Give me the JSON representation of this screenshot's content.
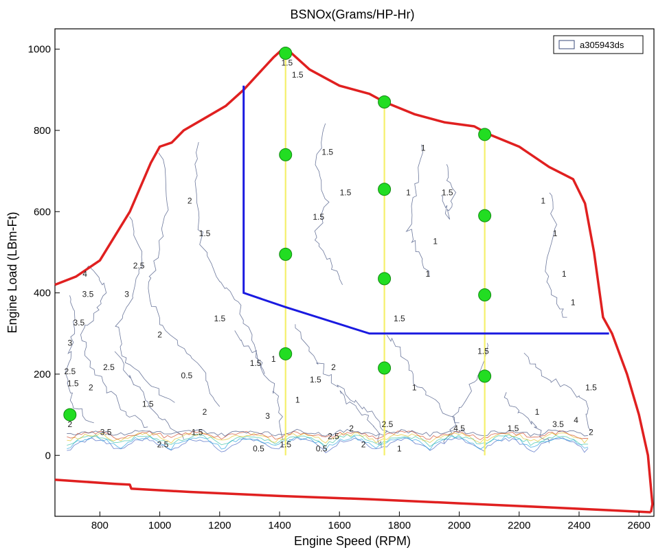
{
  "chart_data": {
    "type": "line",
    "title": "BSNOx(Grams/HP-Hr)",
    "xlabel": "Engine Speed (RPM)",
    "ylabel": "Engine Load (LBm-Ft)",
    "xlim": [
      650,
      2650
    ],
    "ylim": [
      -150,
      1050
    ],
    "xticks": [
      800,
      1000,
      1200,
      1400,
      1600,
      1800,
      2000,
      2200,
      2400,
      2600
    ],
    "yticks": [
      0,
      200,
      400,
      600,
      800,
      1000
    ],
    "legend": {
      "label": "a305943ds",
      "placement": "top-right"
    },
    "colors": {
      "envelope": "#e02020",
      "boundary": "#1a1ae0",
      "speed_lines": "#f5f06a",
      "test_points": "#22dd22",
      "contours": "#3a4a7a"
    },
    "envelope_upper": [
      [
        650,
        420
      ],
      [
        720,
        440
      ],
      [
        800,
        480
      ],
      [
        900,
        600
      ],
      [
        970,
        720
      ],
      [
        1000,
        760
      ],
      [
        1040,
        770
      ],
      [
        1080,
        800
      ],
      [
        1150,
        830
      ],
      [
        1220,
        860
      ],
      [
        1280,
        900
      ],
      [
        1330,
        940
      ],
      [
        1380,
        980
      ],
      [
        1410,
        1000
      ],
      [
        1440,
        990
      ],
      [
        1500,
        950
      ],
      [
        1600,
        910
      ],
      [
        1700,
        890
      ],
      [
        1750,
        870
      ],
      [
        1850,
        840
      ],
      [
        1950,
        820
      ],
      [
        2050,
        810
      ],
      [
        2100,
        790
      ],
      [
        2200,
        760
      ],
      [
        2300,
        710
      ],
      [
        2380,
        680
      ],
      [
        2420,
        620
      ],
      [
        2450,
        500
      ],
      [
        2480,
        340
      ],
      [
        2510,
        300
      ],
      [
        2560,
        200
      ],
      [
        2600,
        100
      ],
      [
        2630,
        0
      ],
      [
        2645,
        -120
      ],
      [
        2640,
        -140
      ]
    ],
    "envelope_lower": [
      [
        650,
        -60
      ],
      [
        750,
        -65
      ],
      [
        850,
        -70
      ],
      [
        900,
        -72
      ],
      [
        905,
        -82
      ],
      [
        1100,
        -90
      ],
      [
        1400,
        -100
      ],
      [
        1700,
        -108
      ],
      [
        2000,
        -118
      ],
      [
        2300,
        -128
      ],
      [
        2500,
        -135
      ],
      [
        2640,
        -140
      ]
    ],
    "boundary": [
      [
        1280,
        910
      ],
      [
        1280,
        400
      ],
      [
        1420,
        365
      ],
      [
        1700,
        300
      ],
      [
        2500,
        300
      ]
    ],
    "speed_lines": [
      {
        "x": 1420,
        "y_range": [
          0,
          995
        ]
      },
      {
        "x": 1750,
        "y_range": [
          0,
          870
        ]
      },
      {
        "x": 2085,
        "y_range": [
          0,
          790
        ]
      }
    ],
    "test_points": [
      [
        700,
        100
      ],
      [
        1420,
        990
      ],
      [
        1420,
        740
      ],
      [
        1420,
        495
      ],
      [
        1420,
        250
      ],
      [
        1750,
        870
      ],
      [
        1750,
        655
      ],
      [
        1750,
        435
      ],
      [
        1750,
        215
      ],
      [
        2085,
        790
      ],
      [
        2085,
        590
      ],
      [
        2085,
        395
      ],
      [
        2085,
        195
      ]
    ],
    "contour_labels": [
      {
        "text": "1.5",
        "x": 1425,
        "y": 960
      },
      {
        "text": "1.5",
        "x": 1460,
        "y": 930
      },
      {
        "text": "1.5",
        "x": 1560,
        "y": 740
      },
      {
        "text": "1.5",
        "x": 1620,
        "y": 640
      },
      {
        "text": "1.5",
        "x": 1530,
        "y": 580
      },
      {
        "text": "1.5",
        "x": 1960,
        "y": 640
      },
      {
        "text": "1",
        "x": 1880,
        "y": 750
      },
      {
        "text": "1",
        "x": 1830,
        "y": 640
      },
      {
        "text": "1",
        "x": 1920,
        "y": 520
      },
      {
        "text": "1",
        "x": 1895,
        "y": 440
      },
      {
        "text": "1",
        "x": 2280,
        "y": 620
      },
      {
        "text": "1",
        "x": 2320,
        "y": 540
      },
      {
        "text": "1",
        "x": 2380,
        "y": 370
      },
      {
        "text": "1",
        "x": 2350,
        "y": 440
      },
      {
        "text": "1",
        "x": 1850,
        "y": 160
      },
      {
        "text": "1",
        "x": 1380,
        "y": 230
      },
      {
        "text": "2",
        "x": 1100,
        "y": 620
      },
      {
        "text": "1.5",
        "x": 1150,
        "y": 540
      },
      {
        "text": "2.5",
        "x": 930,
        "y": 460
      },
      {
        "text": "3",
        "x": 890,
        "y": 390
      },
      {
        "text": "3.5",
        "x": 760,
        "y": 390
      },
      {
        "text": "3.5",
        "x": 730,
        "y": 320
      },
      {
        "text": "4",
        "x": 750,
        "y": 440
      },
      {
        "text": "3",
        "x": 700,
        "y": 270
      },
      {
        "text": "2.5",
        "x": 830,
        "y": 210
      },
      {
        "text": "2",
        "x": 770,
        "y": 160
      },
      {
        "text": "2",
        "x": 1000,
        "y": 290
      },
      {
        "text": "1.5",
        "x": 1200,
        "y": 330
      },
      {
        "text": "1.5",
        "x": 1320,
        "y": 220
      },
      {
        "text": "1",
        "x": 1460,
        "y": 130
      },
      {
        "text": "1.5",
        "x": 1520,
        "y": 180
      },
      {
        "text": "2",
        "x": 1580,
        "y": 210
      },
      {
        "text": "1.5",
        "x": 1800,
        "y": 330
      },
      {
        "text": "0.5",
        "x": 1090,
        "y": 190
      },
      {
        "text": "1.5",
        "x": 960,
        "y": 120
      },
      {
        "text": "2",
        "x": 1150,
        "y": 100
      },
      {
        "text": "3",
        "x": 1360,
        "y": 90
      },
      {
        "text": "1.5",
        "x": 2080,
        "y": 250
      },
      {
        "text": "1.5",
        "x": 2440,
        "y": 160
      },
      {
        "text": "1",
        "x": 2260,
        "y": 100
      },
      {
        "text": "1.5",
        "x": 2180,
        "y": 60
      },
      {
        "text": "2.5",
        "x": 1760,
        "y": 70
      },
      {
        "text": "2",
        "x": 1640,
        "y": 60
      },
      {
        "text": "2.5",
        "x": 1580,
        "y": 40
      },
      {
        "text": "0.5",
        "x": 1540,
        "y": 10
      },
      {
        "text": "0.5",
        "x": 1330,
        "y": 10
      },
      {
        "text": "1",
        "x": 1800,
        "y": 10
      },
      {
        "text": "1.5",
        "x": 1420,
        "y": 20
      },
      {
        "text": "2",
        "x": 1680,
        "y": 20
      },
      {
        "text": "3.5",
        "x": 2330,
        "y": 70
      },
      {
        "text": "4",
        "x": 2390,
        "y": 80
      },
      {
        "text": "2",
        "x": 2440,
        "y": 50
      },
      {
        "text": "3.5",
        "x": 820,
        "y": 50
      },
      {
        "text": "2",
        "x": 700,
        "y": 70
      },
      {
        "text": "2.5",
        "x": 1010,
        "y": 20
      },
      {
        "text": "1.5",
        "x": 1125,
        "y": 50
      },
      {
        "text": "4.5",
        "x": 2000,
        "y": 60
      },
      {
        "text": "1.5",
        "x": 710,
        "y": 170
      },
      {
        "text": "2.5",
        "x": 700,
        "y": 200
      }
    ]
  }
}
